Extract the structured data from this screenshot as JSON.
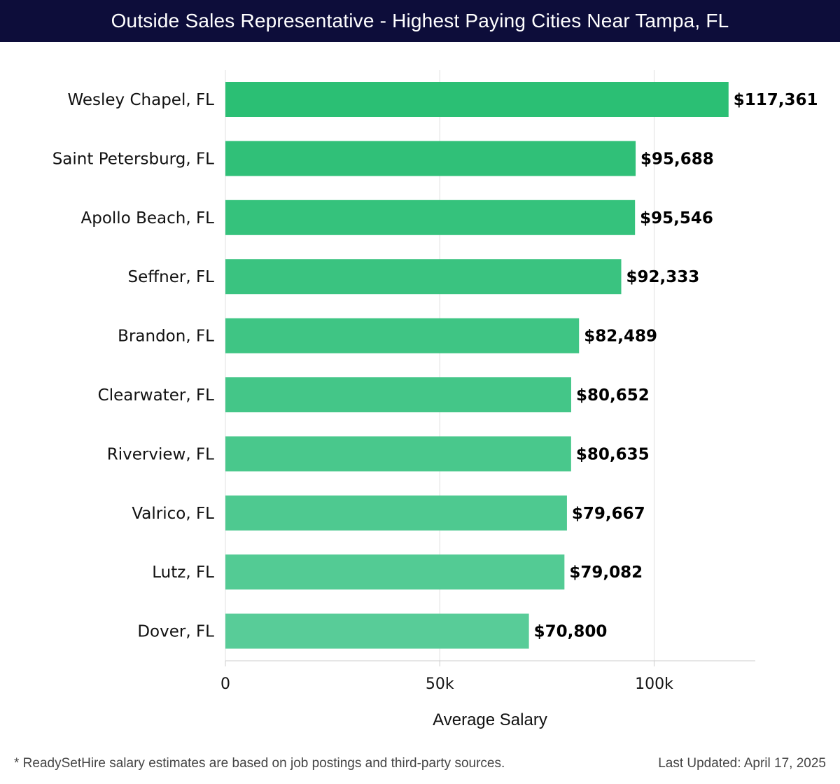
{
  "title": "Outside Sales Representative - Highest Paying Cities Near Tampa, FL",
  "chart_data": {
    "type": "bar",
    "orientation": "horizontal",
    "title": "Outside Sales Representative - Highest Paying Cities Near Tampa, FL",
    "categories": [
      "Wesley Chapel, FL",
      "Saint Petersburg, FL",
      "Apollo Beach, FL",
      "Seffner, FL",
      "Brandon, FL",
      "Clearwater, FL",
      "Riverview, FL",
      "Valrico, FL",
      "Lutz, FL",
      "Dover, FL"
    ],
    "values": [
      117361,
      95688,
      95546,
      92333,
      82489,
      80652,
      80635,
      79667,
      79082,
      70800
    ],
    "value_labels": [
      "$117,361",
      "$95,688",
      "$95,546",
      "$92,333",
      "$82,489",
      "$80,652",
      "$80,635",
      "$79,667",
      "$79,082",
      "$70,800"
    ],
    "xlabel": "Average Salary",
    "ylabel": "",
    "xlim": [
      0,
      123600
    ],
    "xticks": [
      0,
      50000,
      100000
    ],
    "xtick_labels": [
      "0",
      "50k",
      "100k"
    ],
    "grid": true,
    "colors": {
      "bar_top": "#2bbf74",
      "bar_bottom": "#58cc98",
      "grid": "#e0e0e0",
      "axis": "#cccccc"
    }
  },
  "footer": {
    "note": "* ReadySetHire salary estimates are based on job postings and third-party sources.",
    "updated": "Last Updated: April 17, 2025"
  }
}
